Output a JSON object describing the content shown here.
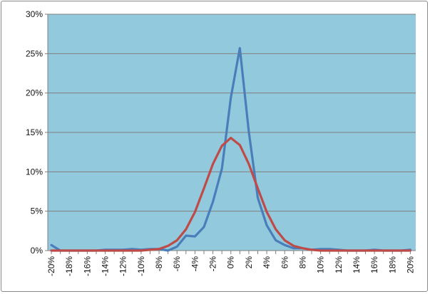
{
  "colors": {
    "plot_background": "#92C9DC",
    "gridline": "#7F7F7F",
    "axis": "#7F7F7F",
    "series_blue": "#4A7EBB",
    "series_red": "#BE4B48"
  },
  "chart_data": {
    "type": "line",
    "title": "",
    "xlabel": "",
    "ylabel": "",
    "ylim": [
      0,
      30
    ],
    "grid": true,
    "legend": "none",
    "y_ticks": [
      {
        "value": 0,
        "label": "0%"
      },
      {
        "value": 5,
        "label": "5%"
      },
      {
        "value": 10,
        "label": "10%"
      },
      {
        "value": 15,
        "label": "15%"
      },
      {
        "value": 20,
        "label": "20%"
      },
      {
        "value": 25,
        "label": "25%"
      },
      {
        "value": 30,
        "label": "30%"
      }
    ],
    "x_ticks": [
      {
        "value": -20,
        "label": "-20%"
      },
      {
        "value": -18,
        "label": "-18%"
      },
      {
        "value": -16,
        "label": "-16%"
      },
      {
        "value": -14,
        "label": "-14%"
      },
      {
        "value": -12,
        "label": "-12%"
      },
      {
        "value": -10,
        "label": "-10%"
      },
      {
        "value": -8,
        "label": "-8%"
      },
      {
        "value": -6,
        "label": "-6%"
      },
      {
        "value": -4,
        "label": "-4%"
      },
      {
        "value": -2,
        "label": "-2%"
      },
      {
        "value": 0,
        "label": "0%"
      },
      {
        "value": 2,
        "label": "2%"
      },
      {
        "value": 4,
        "label": "4%"
      },
      {
        "value": 6,
        "label": "6%"
      },
      {
        "value": 8,
        "label": "8%"
      },
      {
        "value": 10,
        "label": "10%"
      },
      {
        "value": 12,
        "label": "12%"
      },
      {
        "value": 14,
        "label": "14%"
      },
      {
        "value": 16,
        "label": "16%"
      },
      {
        "value": 18,
        "label": "18%"
      },
      {
        "value": 20,
        "label": "20%"
      }
    ],
    "x": [
      -20,
      -19,
      -18,
      -17,
      -16,
      -15,
      -14,
      -13,
      -12,
      -11,
      -10,
      -9,
      -8,
      -7,
      -6,
      -5,
      -4,
      -3,
      -2,
      -1,
      0,
      1,
      2,
      3,
      4,
      5,
      6,
      7,
      8,
      9,
      10,
      11,
      12,
      13,
      14,
      15,
      16,
      17,
      18,
      19,
      20
    ],
    "series": [
      {
        "color": "#4A7EBB",
        "values": [
          0.7,
          0.0,
          0.0,
          0.0,
          0.0,
          0.0,
          0.1,
          0.1,
          0.1,
          0.2,
          0.1,
          0.2,
          0.2,
          0.0,
          0.5,
          1.9,
          1.8,
          3.0,
          6.2,
          10.4,
          19.4,
          25.7,
          15.1,
          6.7,
          3.2,
          1.3,
          0.7,
          0.3,
          0.3,
          0.1,
          0.2,
          0.2,
          0.1,
          0.0,
          0.0,
          0.0,
          0.1,
          0.0,
          0.0,
          0.0,
          0.1
        ]
      },
      {
        "color": "#BE4B48",
        "values": [
          0.0,
          0.0,
          0.0,
          0.0,
          0.0,
          0.0,
          0.0,
          0.0,
          0.0,
          0.0,
          0.0,
          0.1,
          0.2,
          0.6,
          1.3,
          2.7,
          4.9,
          7.9,
          11.0,
          13.3,
          14.3,
          13.4,
          11.0,
          7.9,
          4.9,
          2.7,
          1.3,
          0.6,
          0.3,
          0.1,
          0.0,
          0.0,
          0.0,
          0.0,
          0.0,
          0.0,
          0.0,
          0.0,
          0.0,
          0.0,
          0.0
        ]
      }
    ]
  }
}
